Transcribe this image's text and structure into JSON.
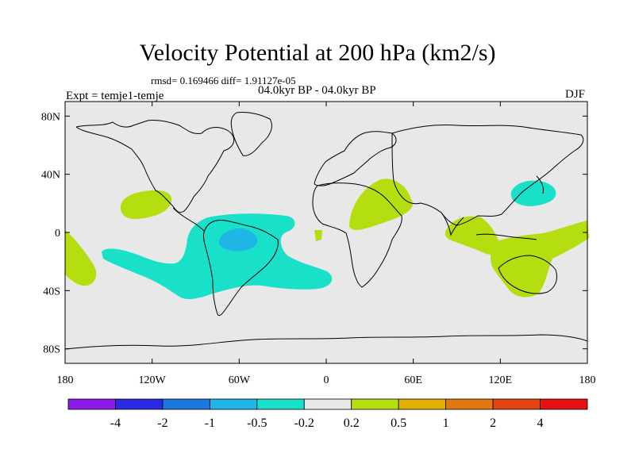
{
  "title": "Velocity Potential at 200 hPa (km2/s)",
  "stats": "rmsd= 0.169466 diff= 1.91127e-05",
  "period": "04.0kyr BP - 04.0kyr BP",
  "experiment": "Expt = temje1-temje",
  "season": "DJF",
  "map": {
    "lon_range": [
      -180,
      180
    ],
    "lat_range": [
      -90,
      90
    ],
    "y_ticks": [
      {
        "lat": 80,
        "label": "80N"
      },
      {
        "lat": 40,
        "label": "40N"
      },
      {
        "lat": 0,
        "label": "0"
      },
      {
        "lat": -40,
        "label": "40S"
      },
      {
        "lat": -80,
        "label": "80S"
      }
    ],
    "x_ticks": [
      {
        "lon": -180,
        "label": "180"
      },
      {
        "lon": -120,
        "label": "120W"
      },
      {
        "lon": -60,
        "label": "60W"
      },
      {
        "lon": 0,
        "label": "0"
      },
      {
        "lon": 60,
        "label": "60E"
      },
      {
        "lon": 120,
        "label": "120E"
      },
      {
        "lon": 180,
        "label": "180"
      }
    ]
  },
  "colorbar": {
    "colors": [
      "#8a1ae6",
      "#2a2ae0",
      "#1a78e0",
      "#1fb6e6",
      "#19e0c8",
      "#e8e8e8",
      "#b5de10",
      "#e0b000",
      "#e07a10",
      "#e04410",
      "#e61010"
    ],
    "labels": [
      "-4",
      "-2",
      "-1",
      "-0.5",
      "-0.2",
      "0.2",
      "0.5",
      "1",
      "2",
      "4"
    ]
  },
  "colors": {
    "background": "#e8e8e8",
    "positive_light": "#b5de10",
    "negative_light": "#19e0c8",
    "negative_mid": "#1fb6e6"
  }
}
